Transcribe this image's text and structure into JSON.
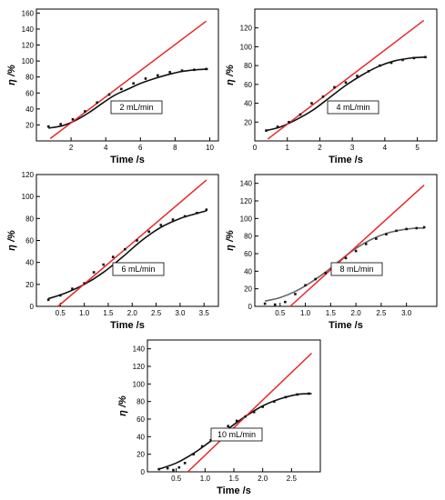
{
  "colors": {
    "fit_line": "#e8262a",
    "curve": "#111111",
    "curve_alt": "#666666",
    "points": "#111111",
    "axes": "#000000"
  },
  "chart_data": [
    {
      "type": "scatter",
      "label": "2 mL/min",
      "xlabel": "Time /s",
      "ylabel": "η /%",
      "xlim": [
        0,
        10.5
      ],
      "ylim": [
        0,
        165
      ],
      "xticks": [
        {
          "v": 2,
          "t": "2"
        },
        {
          "v": 4,
          "t": "4"
        },
        {
          "v": 6,
          "t": "6"
        },
        {
          "v": 8,
          "t": "8"
        },
        {
          "v": 10,
          "t": "10"
        }
      ],
      "yticks": [
        {
          "v": 20,
          "t": "20"
        },
        {
          "v": 40,
          "t": "40"
        },
        {
          "v": 60,
          "t": "60"
        },
        {
          "v": 80,
          "t": "80"
        },
        {
          "v": 100,
          "t": "100"
        },
        {
          "v": 120,
          "t": "120"
        },
        {
          "v": 140,
          "t": "140"
        },
        {
          "v": 160,
          "t": "160"
        }
      ],
      "points": {
        "x": [
          0.7,
          1.4,
          2.1,
          2.8,
          3.5,
          4.2,
          4.9,
          5.6,
          6.3,
          7.0,
          7.7,
          8.4,
          9.1,
          9.8
        ],
        "y": [
          18,
          21,
          27,
          37,
          48,
          58,
          65,
          72,
          78,
          82,
          86,
          88,
          89,
          90
        ]
      },
      "curve": {
        "x": [
          0.7,
          1.5,
          2.2,
          3.0,
          3.8,
          4.5,
          5.3,
          6.0,
          6.8,
          7.6,
          8.4,
          9.2,
          9.9
        ],
        "y": [
          16,
          19,
          25,
          35,
          47,
          57,
          65,
          72,
          78,
          83,
          87,
          89,
          90
        ]
      },
      "fit": {
        "x": [
          0.8,
          9.8
        ],
        "y": [
          3,
          150
        ]
      }
    },
    {
      "type": "scatter",
      "label": "4 mL/min",
      "xlabel": "Time /s",
      "ylabel": "η /%",
      "xlim": [
        0,
        5.6
      ],
      "ylim": [
        0,
        140
      ],
      "xticks": [
        {
          "v": 0,
          "t": "0"
        },
        {
          "v": 1,
          "t": "1"
        },
        {
          "v": 2,
          "t": "2"
        },
        {
          "v": 3,
          "t": "3"
        },
        {
          "v": 4,
          "t": "4"
        },
        {
          "v": 5,
          "t": "5"
        }
      ],
      "yticks": [
        {
          "v": 20,
          "t": "20"
        },
        {
          "v": 40,
          "t": "40"
        },
        {
          "v": 60,
          "t": "60"
        },
        {
          "v": 80,
          "t": "80"
        },
        {
          "v": 100,
          "t": "100"
        },
        {
          "v": 120,
          "t": "120"
        }
      ],
      "points": {
        "x": [
          0.35,
          0.7,
          1.05,
          1.4,
          1.75,
          2.1,
          2.45,
          2.8,
          3.15,
          3.5,
          3.85,
          4.2,
          4.55,
          4.9,
          5.25
        ],
        "y": [
          11,
          15,
          20,
          28,
          40,
          47,
          57,
          62,
          69,
          74,
          80,
          83,
          86,
          88,
          89
        ]
      },
      "curve": {
        "x": [
          0.35,
          0.8,
          1.3,
          1.8,
          2.3,
          2.8,
          3.3,
          3.8,
          4.3,
          4.8,
          5.25
        ],
        "y": [
          11,
          15,
          23,
          33,
          46,
          59,
          70,
          79,
          85,
          88,
          89
        ]
      },
      "fit": {
        "x": [
          0.4,
          5.2
        ],
        "y": [
          2,
          128
        ]
      }
    },
    {
      "type": "scatter",
      "label": "6 mL/min",
      "xlabel": "Time /s",
      "ylabel": "η /%",
      "xlim": [
        0,
        3.8
      ],
      "ylim": [
        0,
        120
      ],
      "xticks": [
        {
          "v": 0.5,
          "t": "0.5"
        },
        {
          "v": 1.0,
          "t": "1.0"
        },
        {
          "v": 1.5,
          "t": "1.5"
        },
        {
          "v": 2.0,
          "t": "2.0"
        },
        {
          "v": 2.5,
          "t": "2.5"
        },
        {
          "v": 3.0,
          "t": "3.0"
        },
        {
          "v": 3.5,
          "t": "3.5"
        }
      ],
      "yticks": [
        {
          "v": 0,
          "t": "0"
        },
        {
          "v": 20,
          "t": "20"
        },
        {
          "v": 40,
          "t": "40"
        },
        {
          "v": 60,
          "t": "60"
        },
        {
          "v": 80,
          "t": "80"
        },
        {
          "v": 100,
          "t": "100"
        },
        {
          "v": 120,
          "t": "120"
        }
      ],
      "points": {
        "x": [
          0.25,
          0.5,
          0.75,
          1.0,
          1.2,
          1.4,
          1.6,
          1.85,
          2.1,
          2.35,
          2.6,
          2.85,
          3.1,
          3.35,
          3.55
        ],
        "y": [
          6,
          10,
          16,
          21,
          31,
          38,
          45,
          52,
          60,
          68,
          74,
          79,
          82,
          85,
          88
        ]
      },
      "curve": {
        "x": [
          0.25,
          0.6,
          1.0,
          1.4,
          1.8,
          2.2,
          2.6,
          3.0,
          3.3,
          3.55
        ],
        "y": [
          7,
          12,
          20,
          31,
          45,
          60,
          72,
          80,
          84,
          87
        ]
      },
      "fit": {
        "x": [
          0.45,
          3.55
        ],
        "y": [
          0,
          115
        ]
      }
    },
    {
      "type": "scatter",
      "label": "8 mL/min",
      "xlabel": "Time /s",
      "ylabel": "η /%",
      "xlim": [
        0,
        3.6
      ],
      "ylim": [
        0,
        150
      ],
      "xticks": [
        {
          "v": 0.5,
          "t": "0.5"
        },
        {
          "v": 1.0,
          "t": "1.0"
        },
        {
          "v": 1.5,
          "t": "1.5"
        },
        {
          "v": 2.0,
          "t": "2.0"
        },
        {
          "v": 2.5,
          "t": "2.5"
        },
        {
          "v": 3.0,
          "t": "3.0"
        }
      ],
      "yticks": [
        {
          "v": 0,
          "t": "0"
        },
        {
          "v": 20,
          "t": "20"
        },
        {
          "v": 40,
          "t": "40"
        },
        {
          "v": 60,
          "t": "60"
        },
        {
          "v": 80,
          "t": "80"
        },
        {
          "v": 100,
          "t": "100"
        },
        {
          "v": 120,
          "t": "120"
        },
        {
          "v": 140,
          "t": "140"
        }
      ],
      "points": {
        "x": [
          0.2,
          0.4,
          0.6,
          0.8,
          1.0,
          1.2,
          1.4,
          1.6,
          1.8,
          2.0,
          2.2,
          2.4,
          2.6,
          2.8,
          3.0,
          3.2,
          3.35
        ],
        "y": [
          3,
          2,
          5,
          14,
          24,
          31,
          38,
          46,
          55,
          63,
          71,
          77,
          82,
          86,
          88,
          89,
          90
        ]
      },
      "curve": {
        "x": [
          0.2,
          0.5,
          0.8,
          1.1,
          1.4,
          1.7,
          2.0,
          2.3,
          2.6,
          2.9,
          3.2,
          3.35
        ],
        "y": [
          6,
          10,
          17,
          27,
          39,
          53,
          66,
          76,
          83,
          87,
          89,
          89
        ]
      },
      "fit": {
        "x": [
          0.7,
          3.35
        ],
        "y": [
          0,
          138
        ]
      }
    },
    {
      "type": "scatter",
      "label": "10 mL/min",
      "xlabel": "Time /s",
      "ylabel": "η /%",
      "xlim": [
        0,
        3.0
      ],
      "ylim": [
        0,
        150
      ],
      "xticks": [
        {
          "v": 0.5,
          "t": "0.5"
        },
        {
          "v": 1.0,
          "t": "1.0"
        },
        {
          "v": 1.5,
          "t": "1.5"
        },
        {
          "v": 2.0,
          "t": "2.0"
        },
        {
          "v": 2.5,
          "t": "2.5"
        }
      ],
      "yticks": [
        {
          "v": 0,
          "t": "0"
        },
        {
          "v": 20,
          "t": "20"
        },
        {
          "v": 40,
          "t": "40"
        },
        {
          "v": 60,
          "t": "60"
        },
        {
          "v": 80,
          "t": "80"
        },
        {
          "v": 100,
          "t": "100"
        },
        {
          "v": 120,
          "t": "120"
        },
        {
          "v": 140,
          "t": "140"
        }
      ],
      "points": {
        "x": [
          0.2,
          0.35,
          0.45,
          0.55,
          0.65,
          0.8,
          0.95,
          1.1,
          1.25,
          1.4,
          1.55,
          1.7,
          1.85,
          2.0,
          2.2,
          2.4,
          2.6,
          2.8
        ],
        "y": [
          3,
          4,
          2,
          5,
          10,
          20,
          29,
          36,
          43,
          52,
          58,
          63,
          68,
          74,
          80,
          85,
          88,
          89
        ]
      },
      "curve": {
        "x": [
          0.2,
          0.5,
          0.8,
          1.1,
          1.4,
          1.7,
          2.0,
          2.3,
          2.6,
          2.85
        ],
        "y": [
          3,
          10,
          21,
          35,
          49,
          63,
          75,
          83,
          88,
          89
        ]
      },
      "fit": {
        "x": [
          0.7,
          2.85
        ],
        "y": [
          0,
          135
        ]
      }
    }
  ]
}
